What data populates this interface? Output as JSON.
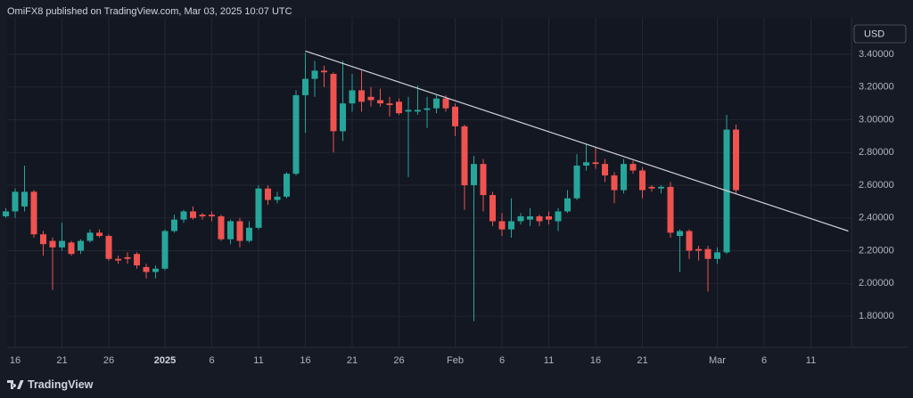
{
  "header": "OmiFX8 published on TradingView.com, Mar 03, 2025 10:07 UTC",
  "footer": "TradingView",
  "chart_data": {
    "type": "candlestick",
    "currency": "USD",
    "up_color": "#26a69a",
    "down_color": "#ef5350",
    "grid": true,
    "categories": [
      null,
      "16",
      null,
      null,
      null,
      null,
      "21",
      null,
      null,
      null,
      null,
      "26",
      null,
      null,
      null,
      null,
      null,
      "2025",
      null,
      null,
      null,
      null,
      "6",
      null,
      null,
      null,
      null,
      "11",
      null,
      null,
      null,
      null,
      "16",
      null,
      null,
      null,
      null,
      "21",
      null,
      null,
      null,
      null,
      "26",
      null,
      null,
      null,
      null,
      null,
      "Feb",
      null,
      null,
      null,
      null,
      "6",
      null,
      null,
      null,
      null,
      "11",
      null,
      null,
      null,
      null,
      "16",
      null,
      null,
      null,
      null,
      "21",
      null,
      null,
      null,
      null,
      null,
      null,
      null,
      "Mar",
      null,
      null,
      null,
      null,
      "6",
      null,
      null,
      null,
      null,
      "11",
      null,
      null,
      null,
      null
    ],
    "open": [
      2.41,
      2.44,
      2.47,
      2.56,
      2.3,
      2.26,
      2.22,
      2.25,
      2.2,
      2.26,
      2.31,
      2.29,
      2.15,
      2.16,
      2.18,
      2.1,
      2.07,
      2.09,
      2.32,
      2.39,
      2.44,
      2.42,
      2.42,
      2.41,
      2.27,
      2.38,
      2.26,
      2.34,
      2.58,
      2.51,
      2.53,
      2.67,
      3.15,
      3.25,
      3.3,
      3.28,
      2.93,
      3.1,
      3.18,
      3.14,
      3.12,
      3.1,
      3.11,
      3.05,
      3.05,
      3.06,
      3.07,
      3.13,
      3.08,
      2.96,
      2.6,
      2.73,
      2.54,
      2.38,
      2.33,
      2.38,
      2.39,
      2.41,
      2.41,
      2.38,
      2.44,
      2.52,
      2.72,
      2.74,
      2.73,
      2.66,
      2.57,
      2.73,
      2.69,
      2.59,
      2.58,
      2.59,
      2.29,
      2.32,
      2.21,
      2.21,
      2.15,
      2.19,
      2.94,
      null,
      null,
      null,
      null,
      null,
      null,
      null,
      null,
      null,
      null,
      null,
      null
    ],
    "high": [
      2.46,
      2.58,
      2.72,
      2.57,
      2.32,
      2.28,
      2.37,
      2.26,
      2.27,
      2.33,
      2.33,
      2.3,
      2.17,
      2.19,
      2.19,
      2.12,
      2.11,
      2.33,
      2.42,
      2.45,
      2.47,
      2.43,
      2.44,
      2.42,
      2.39,
      2.4,
      2.38,
      2.6,
      2.6,
      2.56,
      2.68,
      3.18,
      3.41,
      3.36,
      3.33,
      3.29,
      3.36,
      3.28,
      3.3,
      3.2,
      3.19,
      3.14,
      3.13,
      3.14,
      3.21,
      3.14,
      3.15,
      3.15,
      3.1,
      2.97,
      2.78,
      2.76,
      2.56,
      2.43,
      2.52,
      2.43,
      2.46,
      2.42,
      2.44,
      2.46,
      2.57,
      2.79,
      2.85,
      2.83,
      2.76,
      2.68,
      2.76,
      2.75,
      2.71,
      2.6,
      2.6,
      2.62,
      2.33,
      2.33,
      2.23,
      2.23,
      2.22,
      3.03,
      2.97,
      null,
      null,
      null,
      null,
      null,
      null,
      null,
      null,
      null,
      null,
      null,
      null
    ],
    "low": [
      2.4,
      2.4,
      2.44,
      2.28,
      2.17,
      1.96,
      2.2,
      2.17,
      2.18,
      2.25,
      2.28,
      2.14,
      2.12,
      2.12,
      2.09,
      2.03,
      2.03,
      2.08,
      2.31,
      2.37,
      2.39,
      2.39,
      2.38,
      2.26,
      2.24,
      2.22,
      2.25,
      2.33,
      2.48,
      2.49,
      2.52,
      2.66,
      2.92,
      3.14,
      3.2,
      2.8,
      2.87,
      3.05,
      3.05,
      3.08,
      3.08,
      3.02,
      3.03,
      2.65,
      3.03,
      2.95,
      3.04,
      3.05,
      2.9,
      2.45,
      1.77,
      2.44,
      2.35,
      2.29,
      2.28,
      2.36,
      2.35,
      2.35,
      2.36,
      2.32,
      2.43,
      2.51,
      2.69,
      2.7,
      2.62,
      2.49,
      2.55,
      2.67,
      2.52,
      2.56,
      2.55,
      2.28,
      2.07,
      2.15,
      2.14,
      1.95,
      2.12,
      2.18,
      2.55,
      null,
      null,
      null,
      null,
      null,
      null,
      null,
      null,
      null,
      null,
      null,
      null
    ],
    "close": [
      2.44,
      2.56,
      2.56,
      2.3,
      2.24,
      2.22,
      2.26,
      2.18,
      2.26,
      2.31,
      2.29,
      2.15,
      2.14,
      2.15,
      2.11,
      2.07,
      2.09,
      2.32,
      2.39,
      2.44,
      2.4,
      2.41,
      2.41,
      2.27,
      2.38,
      2.26,
      2.34,
      2.58,
      2.51,
      2.53,
      2.67,
      3.15,
      3.25,
      3.3,
      3.29,
      2.93,
      3.1,
      3.18,
      3.11,
      3.12,
      3.1,
      3.09,
      3.04,
      3.06,
      3.06,
      3.07,
      3.13,
      3.07,
      2.96,
      2.6,
      2.73,
      2.54,
      2.38,
      2.33,
      2.38,
      2.41,
      2.41,
      2.38,
      2.39,
      2.44,
      2.52,
      2.72,
      2.74,
      2.73,
      2.66,
      2.57,
      2.73,
      2.69,
      2.57,
      2.58,
      2.59,
      2.31,
      2.32,
      2.2,
      2.2,
      2.15,
      2.19,
      2.94,
      2.57,
      null,
      null,
      null,
      null,
      null,
      null,
      null,
      null,
      null,
      null,
      null,
      null
    ],
    "trendline": {
      "x": [
        32,
        90
      ],
      "y": [
        3.42,
        2.32
      ],
      "color": "#d1d4dc"
    },
    "ylim": [
      1.61,
      3.623
    ],
    "yticks": [
      {
        "value": 1.8,
        "label": "1.80000"
      },
      {
        "value": 2.0,
        "label": "2.00000"
      },
      {
        "value": 2.2,
        "label": "2.20000"
      },
      {
        "value": 2.4,
        "label": "2.40000"
      },
      {
        "value": 2.6,
        "label": "2.60000"
      },
      {
        "value": 2.8,
        "label": "2.80000"
      },
      {
        "value": 3.0,
        "label": "3.00000"
      },
      {
        "value": 3.2,
        "label": "3.20000"
      },
      {
        "value": 3.4,
        "label": "3.40000"
      }
    ]
  }
}
